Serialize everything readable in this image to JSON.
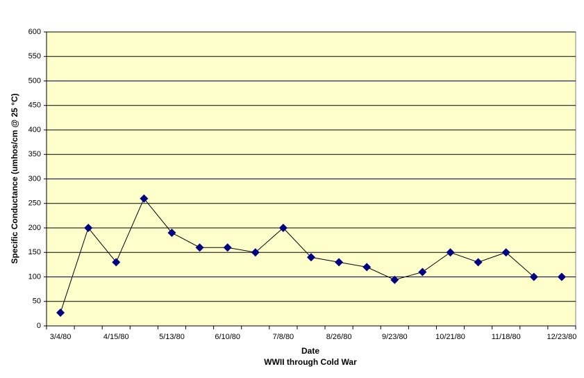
{
  "chart_data": {
    "type": "line",
    "y_axis_label": "Specific Conductance (umhos/cm @ 25 °C)",
    "x_axis_label": "Date",
    "x_axis_sublabel": "WWII through Cold War",
    "categories": [
      "3/4/80",
      null,
      "4/15/80",
      null,
      "5/13/80",
      null,
      "6/10/80",
      null,
      "7/8/80",
      null,
      "8/26/80",
      null,
      "9/23/80",
      null,
      "10/21/80",
      null,
      "11/18/80",
      null,
      "12/23/80"
    ],
    "series": [
      {
        "color": "#000080",
        "values": [
          27,
          200,
          130,
          260,
          190,
          160,
          160,
          150,
          200,
          140,
          130,
          120,
          94,
          110,
          150,
          130,
          150,
          100,
          100
        ]
      }
    ],
    "ylim": [
      0,
      600
    ],
    "yticks": [
      0,
      50,
      100,
      150,
      200,
      250,
      300,
      350,
      400,
      450,
      500,
      550,
      600
    ],
    "grid": true,
    "plot_background": "#ffffcc"
  }
}
